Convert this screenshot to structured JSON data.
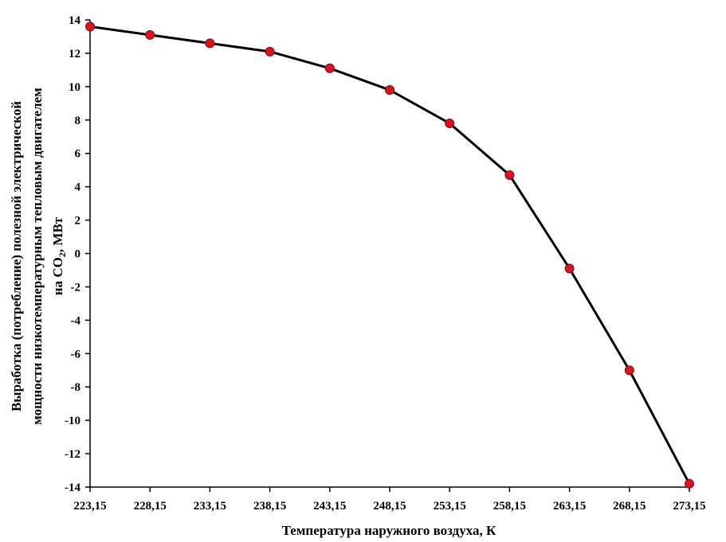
{
  "chart_data": {
    "type": "line",
    "x_ticks": [
      "223,15",
      "228,15",
      "233,15",
      "238,15",
      "243,15",
      "248,15",
      "253,15",
      "258,15",
      "263,15",
      "268,15",
      "273,15"
    ],
    "y_ticks": [
      "14",
      "12",
      "10",
      "8",
      "6",
      "4",
      "2",
      "0",
      "-2",
      "-4",
      "-6",
      "-8",
      "-10",
      "-12",
      "-14"
    ],
    "x": [
      223.15,
      228.15,
      233.15,
      238.15,
      243.15,
      248.15,
      253.15,
      258.15,
      263.15,
      268.15,
      273.15
    ],
    "series": [
      {
        "values": [
          13.6,
          13.1,
          12.6,
          12.1,
          11.1,
          9.8,
          7.8,
          4.7,
          -0.9,
          -7.0,
          -13.8
        ]
      }
    ],
    "xlabel": "Температура наружного воздуха, К",
    "ylabel_line1": "Выработка (потребление) полезной электрической",
    "ylabel_line2": "мощности низкотемпературным тепловым двигателем",
    "ylabel_line3_prefix": "на CO",
    "ylabel_line3_sub": "2",
    "ylabel_line3_suffix": ", МВт",
    "xlim": [
      223.15,
      273.15
    ],
    "ylim": [
      -14,
      14
    ],
    "grid": false,
    "line_color": "#000000",
    "marker_color": "#e0101e"
  }
}
